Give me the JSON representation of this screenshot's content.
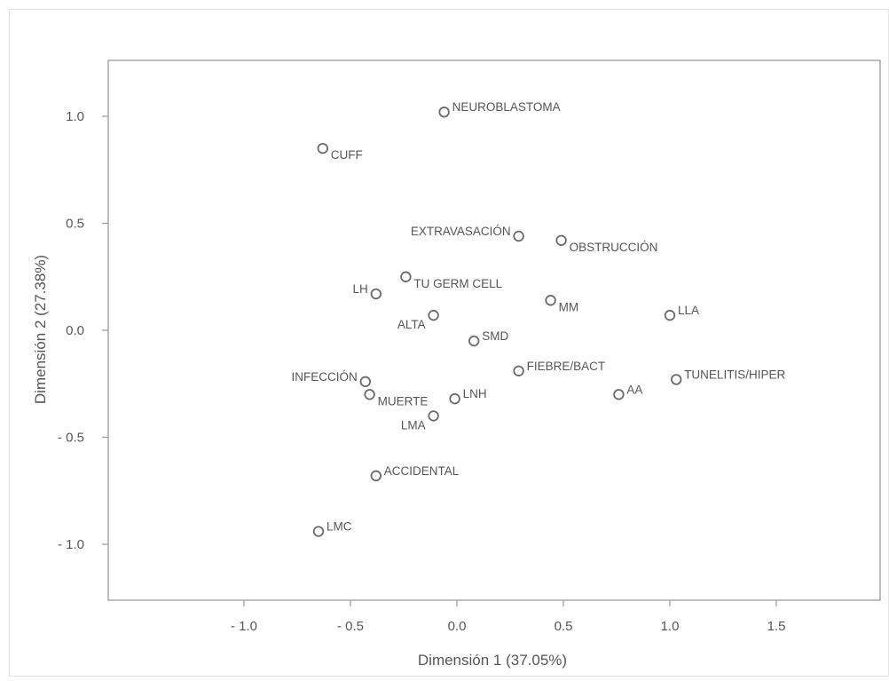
{
  "chart_data": {
    "type": "scatter",
    "title": "",
    "xlabel": "Dimensión 1  (37.05%)",
    "ylabel": "Dimensión 2  (27.38%)",
    "xlim": [
      -1.6,
      2.0
    ],
    "ylim": [
      -1.25,
      1.25
    ],
    "grid": false,
    "x_ticks": [
      {
        "value": -1.0,
        "label": "- 1.0"
      },
      {
        "value": -0.5,
        "label": "- 0.5"
      },
      {
        "value": 0.0,
        "label": "0.0"
      },
      {
        "value": 0.5,
        "label": "0.5"
      },
      {
        "value": 1.0,
        "label": "1.0"
      },
      {
        "value": 1.5,
        "label": "1.5"
      }
    ],
    "y_ticks": [
      {
        "value": 1.0,
        "label": "1.0"
      },
      {
        "value": 0.5,
        "label": "0.5"
      },
      {
        "value": 0.0,
        "label": "0.0"
      },
      {
        "value": -0.5,
        "label": "- 0.5"
      },
      {
        "value": -1.0,
        "label": "- 1.0"
      }
    ],
    "points": [
      {
        "label": "NEUROBLASTOMA",
        "x": -0.06,
        "y": 1.02,
        "pos": "right-up"
      },
      {
        "label": "CUFF",
        "x": -0.63,
        "y": 0.85,
        "pos": "right-down"
      },
      {
        "label": "EXTRAVASACIÓN",
        "x": 0.29,
        "y": 0.44,
        "pos": "left-up"
      },
      {
        "label": "OBSTRUCCIÓN",
        "x": 0.49,
        "y": 0.42,
        "pos": "right-down"
      },
      {
        "label": "TU GERM CELL",
        "x": -0.24,
        "y": 0.25,
        "pos": "right-down"
      },
      {
        "label": "LH",
        "x": -0.38,
        "y": 0.17,
        "pos": "left-up"
      },
      {
        "label": "MM",
        "x": 0.44,
        "y": 0.14,
        "pos": "right-down"
      },
      {
        "label": "LLA",
        "x": 1.0,
        "y": 0.07,
        "pos": "right-up"
      },
      {
        "label": "ALTA",
        "x": -0.11,
        "y": 0.07,
        "pos": "left-down"
      },
      {
        "label": "SMD",
        "x": 0.08,
        "y": -0.05,
        "pos": "right-up"
      },
      {
        "label": "FIEBRE/BACT",
        "x": 0.29,
        "y": -0.19,
        "pos": "right-up"
      },
      {
        "label": "TUNELITIS/HIPER",
        "x": 1.03,
        "y": -0.23,
        "pos": "right-up"
      },
      {
        "label": "INFECCIÓN",
        "x": -0.43,
        "y": -0.24,
        "pos": "left-up"
      },
      {
        "label": "AA",
        "x": 0.76,
        "y": -0.3,
        "pos": "right-up"
      },
      {
        "label": "MUERTE",
        "x": -0.41,
        "y": -0.3,
        "pos": "right-down"
      },
      {
        "label": "LNH",
        "x": -0.01,
        "y": -0.32,
        "pos": "right-up"
      },
      {
        "label": "LMA",
        "x": -0.11,
        "y": -0.4,
        "pos": "left-down"
      },
      {
        "label": "ACCIDENTAL",
        "x": -0.38,
        "y": -0.68,
        "pos": "right-up"
      },
      {
        "label": "LMC",
        "x": -0.65,
        "y": -0.94,
        "pos": "right-up"
      }
    ]
  }
}
